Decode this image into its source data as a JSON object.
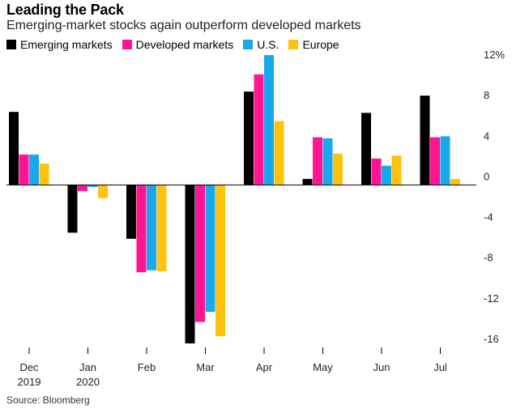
{
  "title": "Leading the Pack",
  "subtitle": "Emerging-market stocks again outperform developed markets",
  "source": "Source: Bloomberg",
  "chart_data": {
    "type": "bar",
    "categories": [
      {
        "line1": "Dec",
        "line2": "2019"
      },
      {
        "line1": "Jan",
        "line2": "2020"
      },
      {
        "line1": "Feb",
        "line2": ""
      },
      {
        "line1": "Mar",
        "line2": ""
      },
      {
        "line1": "Apr",
        "line2": ""
      },
      {
        "line1": "May",
        "line2": ""
      },
      {
        "line1": "Jun",
        "line2": ""
      },
      {
        "line1": "Jul",
        "line2": ""
      }
    ],
    "series": [
      {
        "name": "Emerging markets",
        "color": "#000000",
        "values": [
          7.2,
          -4.7,
          -5.3,
          -15.6,
          9.2,
          0.6,
          7.1,
          8.8
        ]
      },
      {
        "name": "Developed markets",
        "color": "#ff1493",
        "values": [
          3.0,
          -0.6,
          -8.6,
          -13.5,
          10.9,
          4.7,
          2.6,
          4.7
        ]
      },
      {
        "name": "U.S.",
        "color": "#1aa7ec",
        "values": [
          3.0,
          -0.2,
          -8.4,
          -12.5,
          12.8,
          4.6,
          1.9,
          4.8
        ]
      },
      {
        "name": "Europe",
        "color": "#ffc20e",
        "values": [
          2.1,
          -1.3,
          -8.5,
          -14.9,
          6.3,
          3.1,
          2.9,
          0.6
        ]
      }
    ],
    "yticks": [
      {
        "value": 12,
        "label": "12%"
      },
      {
        "value": 8,
        "label": "8"
      },
      {
        "value": 4,
        "label": "4"
      },
      {
        "value": 0,
        "label": "0"
      },
      {
        "value": -4,
        "label": "-4"
      },
      {
        "value": -8,
        "label": "-8"
      },
      {
        "value": -12,
        "label": "-12"
      },
      {
        "value": -16,
        "label": "-16"
      }
    ],
    "ylim": [
      -16,
      12
    ],
    "axis_side": "right",
    "grid": false,
    "legend_position": "top-left"
  }
}
